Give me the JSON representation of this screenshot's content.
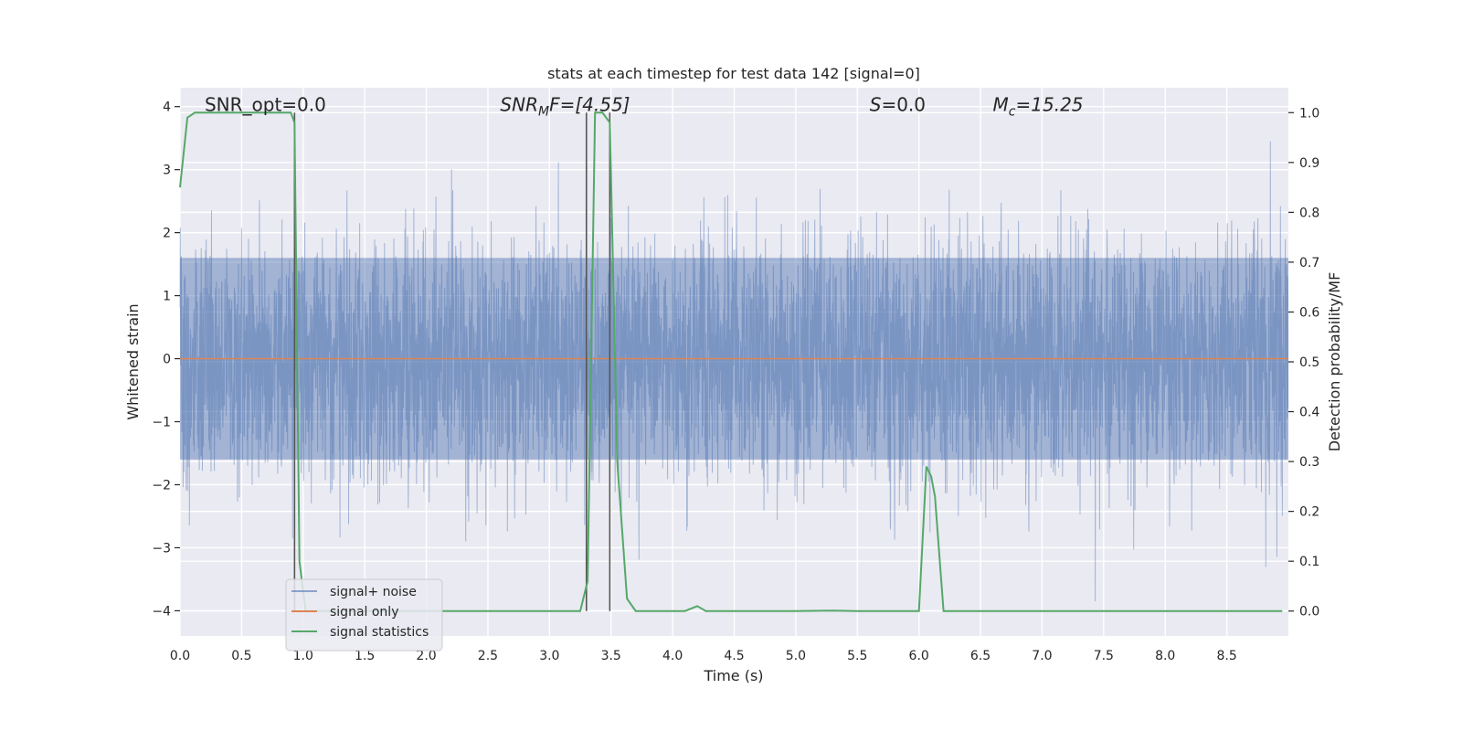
{
  "chart_data": {
    "type": "line",
    "title": "stats at each timestep for test data 142 [signal=0]",
    "xlabel": "Time (s)",
    "ylabel": "Whitened strain",
    "ylabel_right": "Detection probability/MF",
    "xlim": [
      0,
      9.0
    ],
    "ylim": [
      -4.4,
      4.3
    ],
    "ylim_right": [
      -0.05,
      1.05
    ],
    "x_ticks": [
      0.0,
      0.5,
      1.0,
      1.5,
      2.0,
      2.5,
      3.0,
      3.5,
      4.0,
      4.5,
      5.0,
      5.5,
      6.0,
      6.5,
      7.0,
      7.5,
      8.0,
      8.5
    ],
    "x_tick_labels": [
      "0.0",
      "0.5",
      "1.0",
      "1.5",
      "2.0",
      "2.5",
      "3.0",
      "3.5",
      "4.0",
      "4.5",
      "5.0",
      "5.5",
      "6.0",
      "6.5",
      "7.0",
      "7.5",
      "8.0",
      "8.5"
    ],
    "y_ticks": [
      4,
      3,
      2,
      1,
      0,
      -1,
      -2,
      -3,
      -4
    ],
    "y_tick_labels": [
      "4",
      "3",
      "2",
      "1",
      "0",
      "−1",
      "−2",
      "−3",
      "−4"
    ],
    "y_right_ticks": [
      1.0,
      0.9,
      0.8,
      0.7,
      0.6,
      0.5,
      0.4,
      0.3,
      0.2,
      0.1,
      0.0
    ],
    "y_right_tick_labels": [
      "1.0",
      "0.9",
      "0.8",
      "0.7",
      "0.6",
      "0.5",
      "0.4",
      "0.3",
      "0.2",
      "0.1",
      "0.0"
    ],
    "grid": true,
    "legend_position": "lower-left",
    "annotations": [
      {
        "text": "SNR_opt=0.0",
        "x": 0.2,
        "y": 4.0,
        "style": "normal"
      },
      {
        "base": "SNR",
        "sub": "M",
        "rest": "F=[4.55]",
        "x": 2.6,
        "y": 4.0,
        "style": "italic"
      },
      {
        "base": "S",
        "sub": "",
        "rest": "=0.0",
        "x": 5.6,
        "y": 4.0,
        "style": "italic"
      },
      {
        "base": "M",
        "sub": "c",
        "rest": "=15.25",
        "x": 6.6,
        "y": 4.0,
        "style": "italic"
      }
    ],
    "vertical_lines": [
      0.93,
      3.3,
      3.49
    ],
    "series": [
      {
        "name": "signal+ noise",
        "color": "#4c72b0",
        "axis": "left",
        "kind": "noise",
        "x_range": [
          0,
          9.0
        ],
        "sample_rate": 512,
        "envelope": {
          "core": 1.6,
          "max": 4.0,
          "min": -4.0
        }
      },
      {
        "name": "signal only",
        "color": "#dd8452",
        "axis": "left",
        "x": [
          0,
          9.0
        ],
        "y": [
          0,
          0
        ]
      },
      {
        "name": "signal statistics",
        "color": "#55a868",
        "axis": "right",
        "x": [
          0.0,
          0.06,
          0.12,
          0.2,
          0.3,
          0.5,
          0.7,
          0.85,
          0.9,
          0.93,
          0.97,
          1.02,
          1.1,
          1.5,
          2.0,
          2.5,
          3.0,
          3.25,
          3.31,
          3.37,
          3.43,
          3.49,
          3.55,
          3.63,
          3.7,
          3.8,
          4.1,
          4.2,
          4.27,
          4.5,
          5.0,
          5.3,
          5.5,
          6.0,
          6.06,
          6.1,
          6.13,
          6.2,
          6.3,
          7.0,
          8.0,
          8.95
        ],
        "y": [
          0.85,
          0.99,
          1.0,
          1.0,
          1.0,
          1.0,
          1.0,
          1.0,
          1.0,
          0.98,
          0.1,
          0.0,
          0.0,
          0.0,
          0.0,
          0.0,
          0.0,
          0.0,
          0.06,
          1.0,
          1.0,
          0.98,
          0.3,
          0.025,
          0.0,
          0.0,
          0.0,
          0.01,
          0.0,
          0.0,
          0.0,
          0.001,
          0.0,
          0.0,
          0.29,
          0.27,
          0.23,
          0.0,
          0.0,
          0.0,
          0.0,
          0.0
        ]
      }
    ]
  }
}
